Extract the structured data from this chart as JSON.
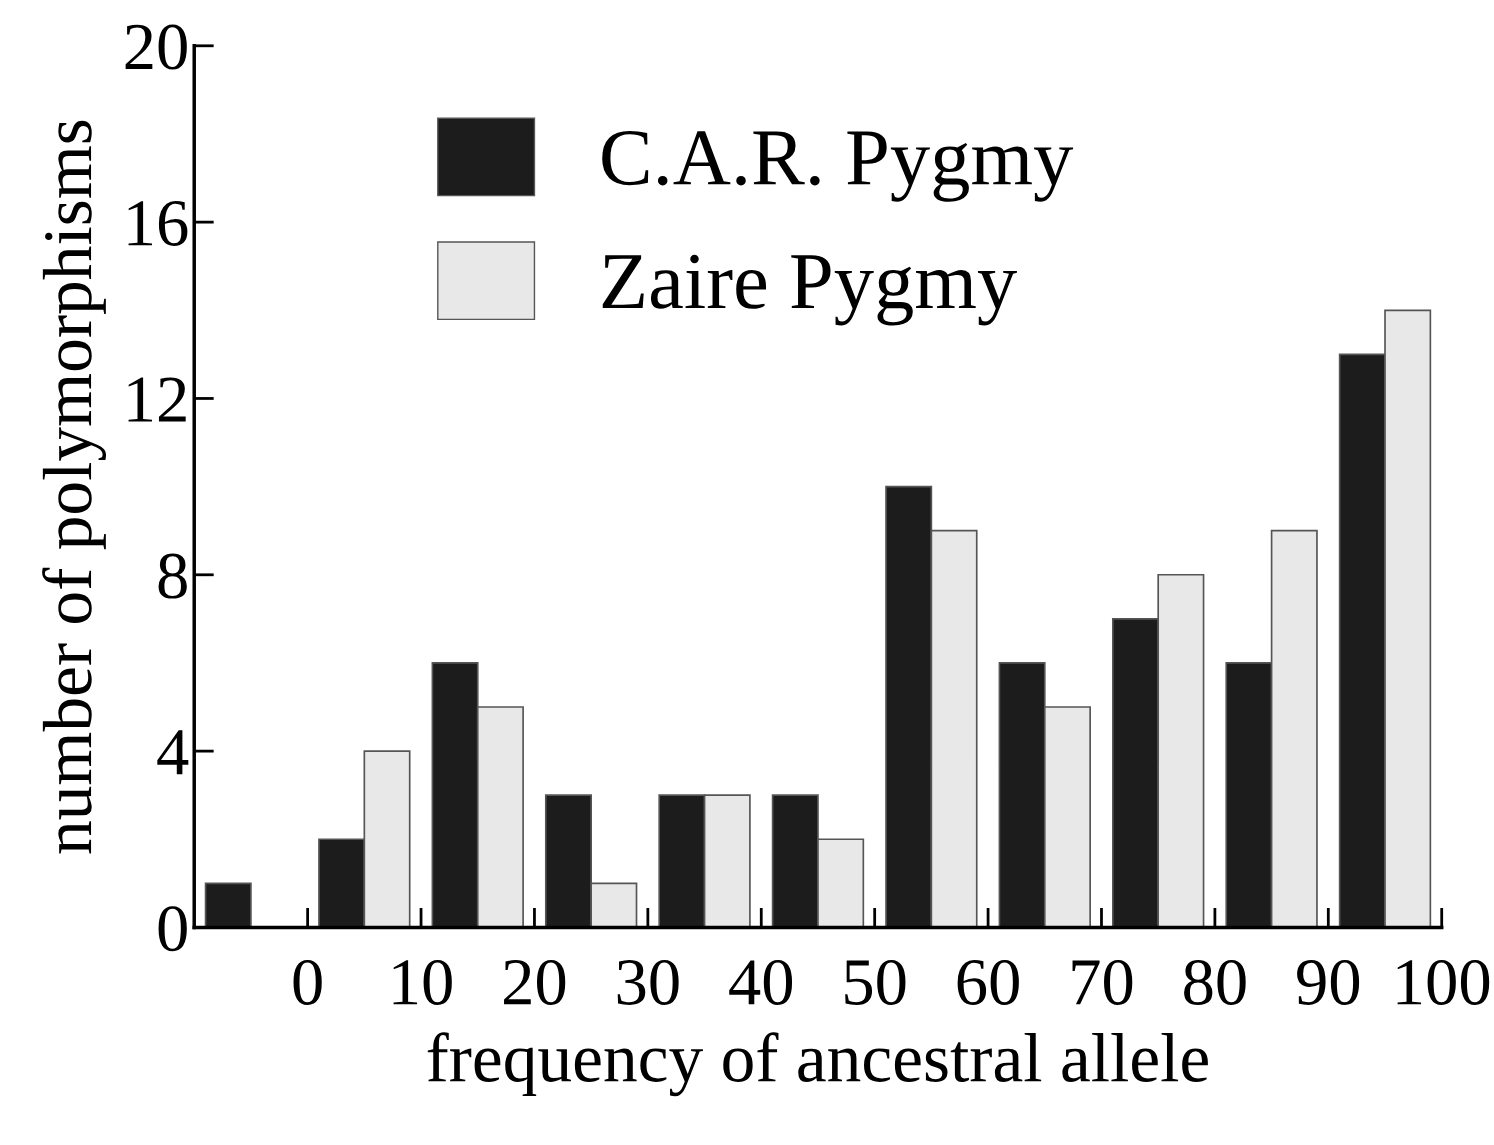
{
  "chart_data": {
    "type": "bar",
    "xlabel": "frequency of ancestral allele",
    "ylabel": "number of polymorphisms",
    "x": [
      -5,
      5,
      15,
      25,
      35,
      45,
      55,
      65,
      75,
      85,
      95
    ],
    "series": [
      {
        "name": "C.A.R. Pygmy",
        "color": "#1c1c1c",
        "values": [
          1,
          2,
          6,
          3,
          3,
          3,
          10,
          6,
          7,
          6,
          13
        ]
      },
      {
        "name": "Zaire Pygmy",
        "color": "#e8e8e8",
        "values": [
          null,
          4,
          5,
          1,
          3,
          2,
          9,
          5,
          8,
          9,
          14
        ]
      }
    ],
    "xlim": [
      -10,
      100
    ],
    "xticks": [
      0,
      10,
      20,
      30,
      40,
      50,
      60,
      70,
      80,
      90,
      100
    ],
    "ylim": [
      0,
      20
    ],
    "yticks": [
      0,
      4,
      8,
      12,
      16,
      20
    ],
    "grid": false,
    "legend": "top"
  }
}
